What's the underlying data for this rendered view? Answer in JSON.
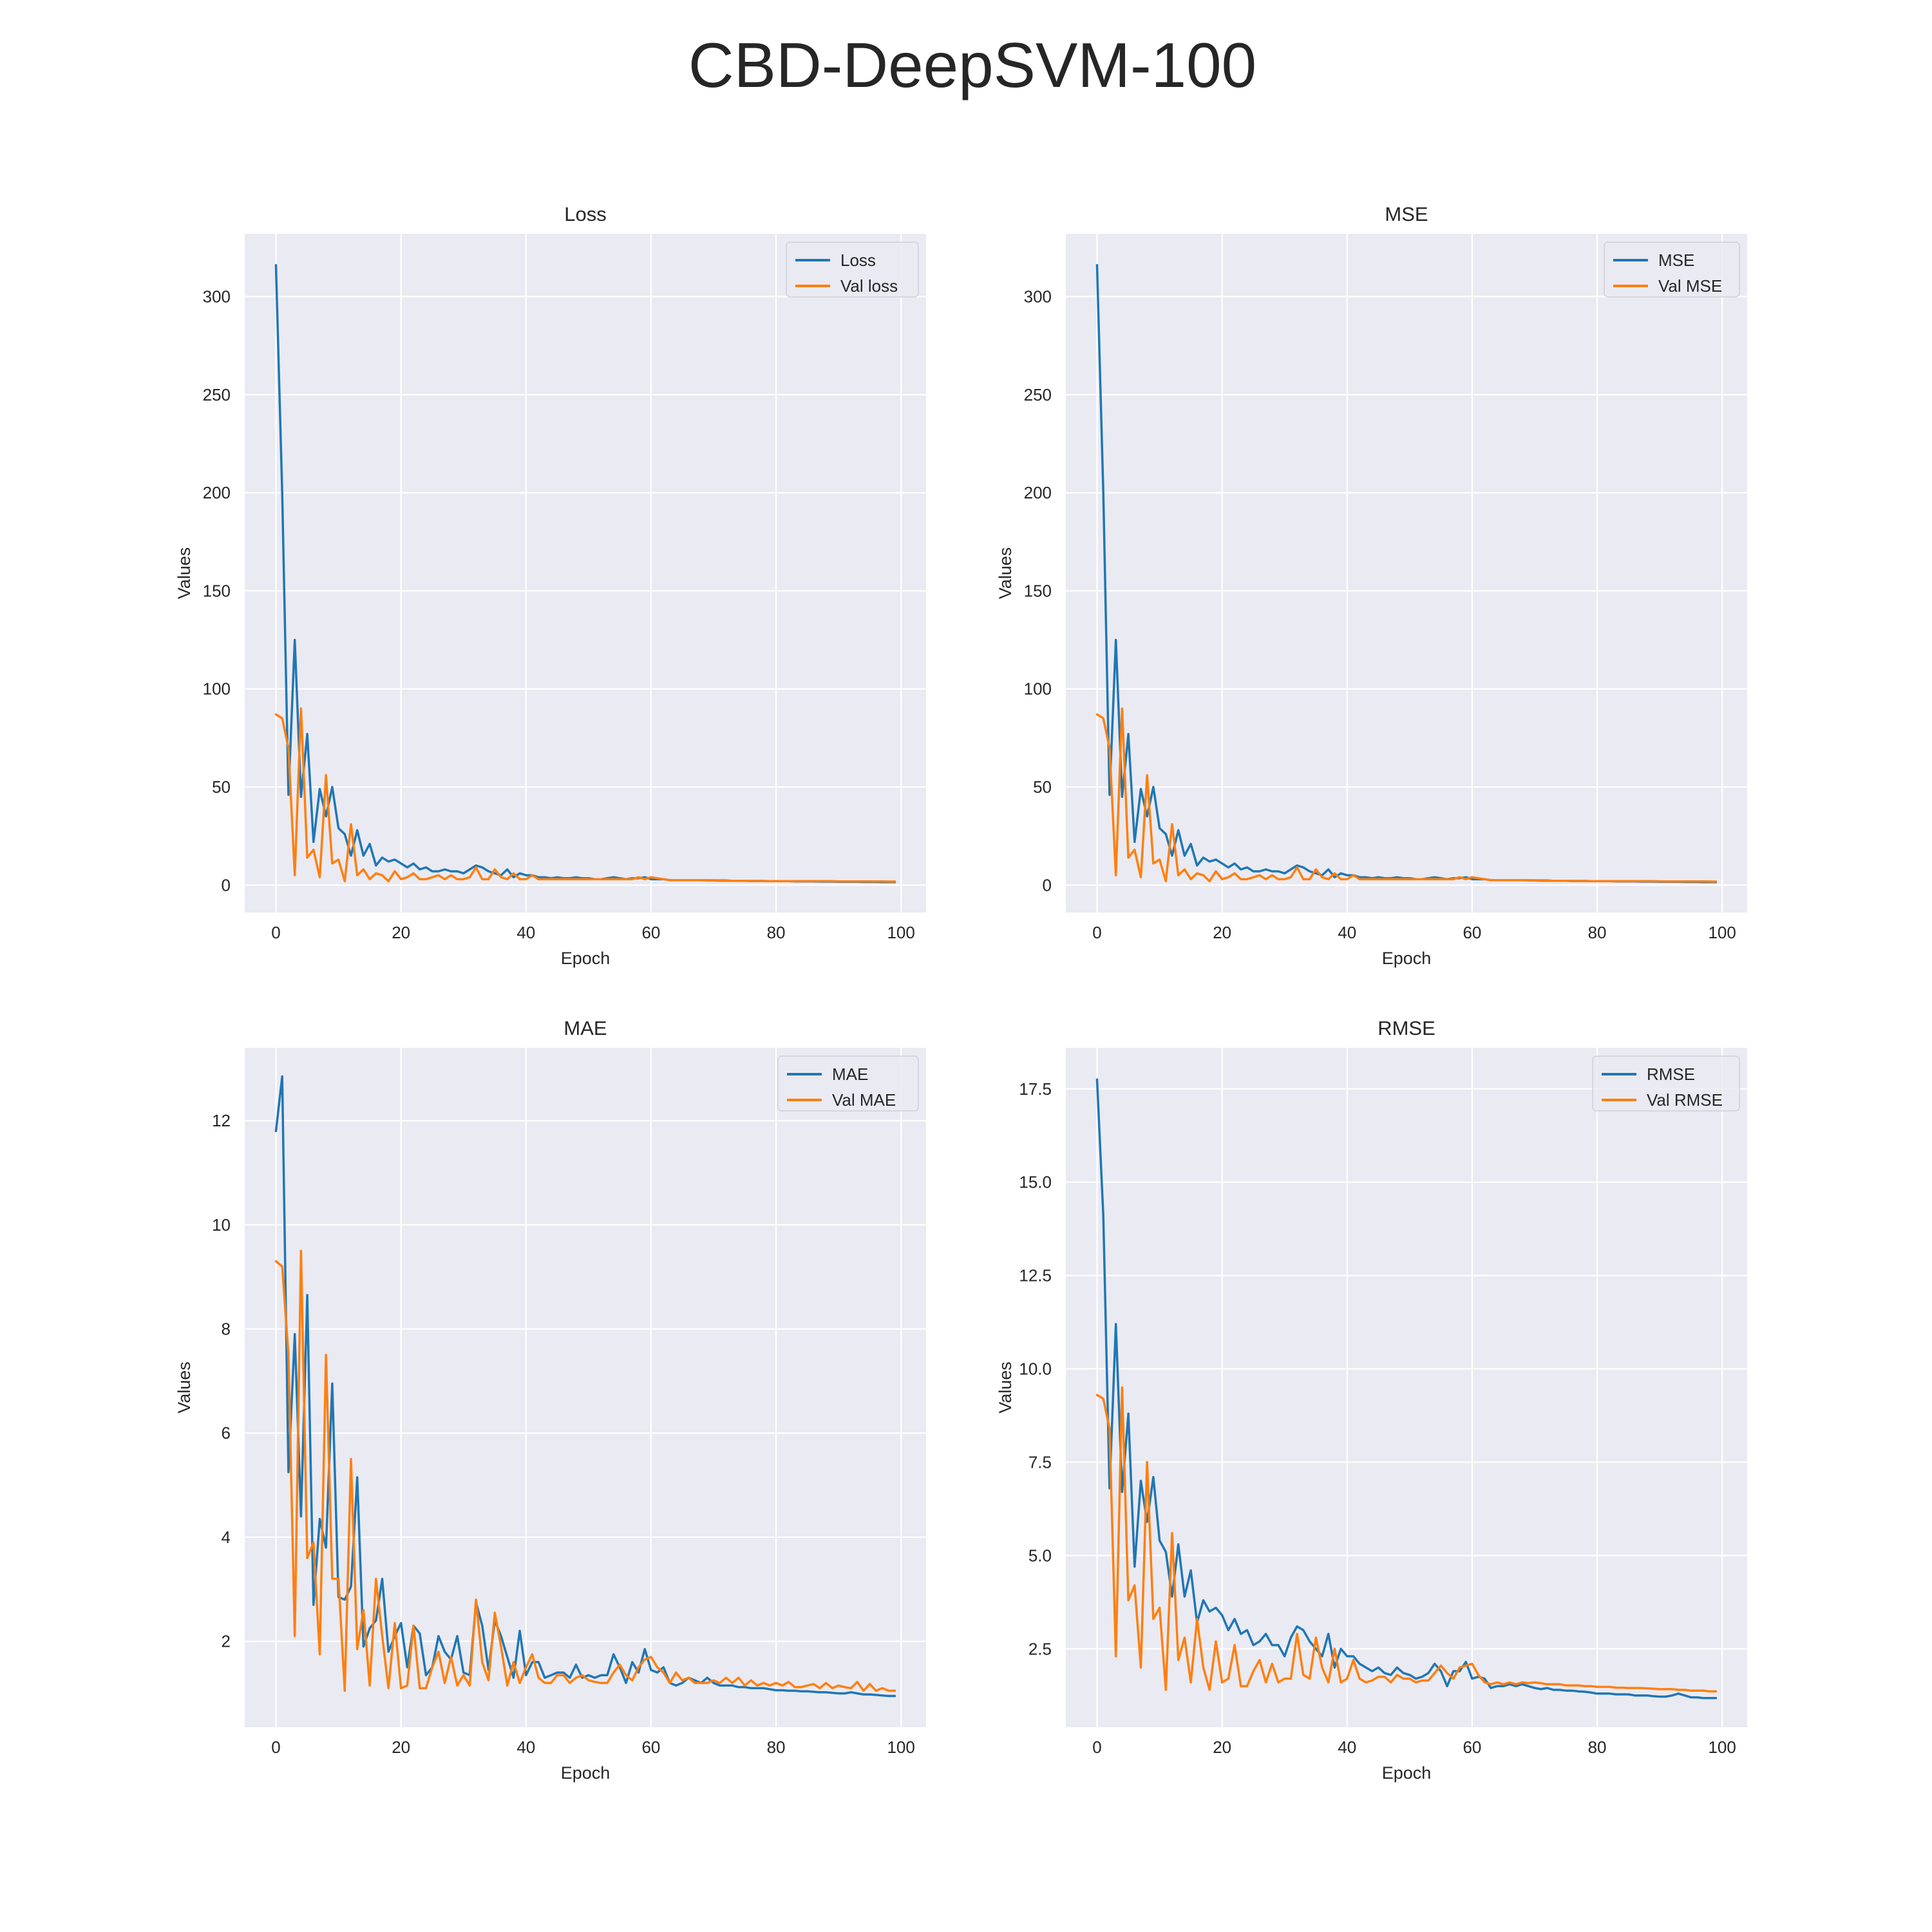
{
  "figure_title": "CBD-DeepSVM-100",
  "colors": {
    "train": "#1f77b4",
    "val": "#ff7f0e",
    "background": "#eaeaf2",
    "grid": "#ffffff"
  },
  "chart_data": [
    {
      "type": "line",
      "title": "Loss",
      "xlabel": "Epoch",
      "ylabel": "Values",
      "xlim": [
        -5,
        104
      ],
      "ylim": [
        -14,
        332
      ],
      "xticks": [
        0,
        20,
        40,
        60,
        80,
        100
      ],
      "yticks": [
        0,
        50,
        100,
        150,
        200,
        250,
        300
      ],
      "grid": true,
      "legend_position": "top-right",
      "series": [
        {
          "name": "Loss",
          "color": "#1f77b4",
          "values": [
            316,
            200,
            46,
            125,
            45,
            77,
            22,
            49,
            35,
            50,
            29,
            26,
            15,
            28,
            15,
            21,
            10,
            14,
            12,
            13,
            11,
            9,
            11,
            8,
            9,
            7,
            7,
            8,
            7,
            7,
            6,
            8,
            10,
            9,
            7,
            6,
            5,
            8,
            4,
            6,
            5,
            5,
            4,
            4,
            3.5,
            4,
            3.5,
            3.5,
            4,
            3.5,
            3.5,
            3,
            3,
            3.5,
            4,
            3.5,
            3,
            3.5,
            3.5,
            4,
            3,
            3,
            3,
            2.5,
            2.5,
            2.5,
            2.5,
            2.5,
            2.5,
            2.4,
            2.4,
            2.3,
            2.3,
            2.2,
            2.2,
            2.2,
            2.1,
            2.1,
            2.1,
            2,
            2,
            2,
            2,
            1.9,
            1.9,
            1.9,
            1.9,
            1.8,
            1.8,
            1.8,
            1.7,
            1.7,
            1.7,
            1.7,
            1.6,
            1.6,
            1.6,
            1.5,
            1.5,
            1.5
          ]
        },
        {
          "name": "Val loss",
          "color": "#ff7f0e",
          "values": [
            87,
            85,
            70,
            5,
            90,
            14,
            18,
            4,
            56,
            11,
            13,
            2,
            31,
            5,
            8,
            3,
            6,
            5,
            2,
            7,
            3,
            4,
            6,
            3,
            3,
            4,
            5,
            3,
            5,
            3,
            3,
            4,
            9,
            3,
            3,
            8,
            4,
            3,
            6,
            3,
            3,
            5,
            3,
            3,
            3,
            3,
            3,
            3,
            3,
            3,
            3,
            3,
            3,
            3,
            3,
            3,
            3,
            3,
            4,
            3,
            4,
            3.5,
            3,
            2.5,
            2.5,
            2.5,
            2.5,
            2.5,
            2.5,
            2.5,
            2.3,
            2.2,
            2.2,
            2.2,
            2.2,
            2.2,
            2.1,
            2.1,
            2.1,
            2,
            2,
            2,
            2,
            2,
            2,
            2,
            2,
            2,
            2,
            2,
            1.9,
            1.9,
            1.9,
            1.9,
            1.9,
            1.9,
            1.9,
            1.9,
            1.8,
            1.8
          ]
        }
      ]
    },
    {
      "type": "line",
      "title": "MSE",
      "xlabel": "Epoch",
      "ylabel": "Values",
      "xlim": [
        -5,
        104
      ],
      "ylim": [
        -14,
        332
      ],
      "xticks": [
        0,
        20,
        40,
        60,
        80,
        100
      ],
      "yticks": [
        0,
        50,
        100,
        150,
        200,
        250,
        300
      ],
      "grid": true,
      "legend_position": "top-right",
      "series": [
        {
          "name": "MSE",
          "color": "#1f77b4",
          "values": [
            316,
            200,
            46,
            125,
            45,
            77,
            22,
            49,
            35,
            50,
            29,
            26,
            15,
            28,
            15,
            21,
            10,
            14,
            12,
            13,
            11,
            9,
            11,
            8,
            9,
            7,
            7,
            8,
            7,
            7,
            6,
            8,
            10,
            9,
            7,
            6,
            5,
            8,
            4,
            6,
            5,
            5,
            4,
            4,
            3.5,
            4,
            3.5,
            3.5,
            4,
            3.5,
            3.5,
            3,
            3,
            3.5,
            4,
            3.5,
            3,
            3.5,
            3.5,
            4,
            3,
            3,
            3,
            2.5,
            2.5,
            2.5,
            2.5,
            2.5,
            2.5,
            2.4,
            2.4,
            2.3,
            2.3,
            2.2,
            2.2,
            2.2,
            2.1,
            2.1,
            2.1,
            2,
            2,
            2,
            2,
            1.9,
            1.9,
            1.9,
            1.9,
            1.8,
            1.8,
            1.8,
            1.7,
            1.7,
            1.7,
            1.7,
            1.6,
            1.6,
            1.6,
            1.5,
            1.5,
            1.5
          ]
        },
        {
          "name": "Val MSE",
          "color": "#ff7f0e",
          "values": [
            87,
            85,
            70,
            5,
            90,
            14,
            18,
            4,
            56,
            11,
            13,
            2,
            31,
            5,
            8,
            3,
            6,
            5,
            2,
            7,
            3,
            4,
            6,
            3,
            3,
            4,
            5,
            3,
            5,
            3,
            3,
            4,
            9,
            3,
            3,
            8,
            4,
            3,
            6,
            3,
            3,
            5,
            3,
            3,
            3,
            3,
            3,
            3,
            3,
            3,
            3,
            3,
            3,
            3,
            3,
            3,
            3,
            3,
            4,
            3,
            4,
            3.5,
            3,
            2.5,
            2.5,
            2.5,
            2.5,
            2.5,
            2.5,
            2.5,
            2.3,
            2.2,
            2.2,
            2.2,
            2.2,
            2.2,
            2.1,
            2.1,
            2.1,
            2,
            2,
            2,
            2,
            2,
            2,
            2,
            2,
            2,
            2,
            2,
            1.9,
            1.9,
            1.9,
            1.9,
            1.9,
            1.9,
            1.9,
            1.9,
            1.8,
            1.8
          ]
        }
      ]
    },
    {
      "type": "line",
      "title": "MAE",
      "xlabel": "Epoch",
      "ylabel": "Values",
      "xlim": [
        -5,
        104
      ],
      "ylim": [
        0.35,
        13.4
      ],
      "xticks": [
        0,
        20,
        40,
        60,
        80,
        100
      ],
      "yticks": [
        2,
        4,
        6,
        8,
        10,
        12
      ],
      "grid": true,
      "legend_position": "top-right",
      "series": [
        {
          "name": "MAE",
          "color": "#1f77b4",
          "values": [
            11.8,
            12.85,
            5.25,
            7.9,
            4.4,
            8.65,
            2.7,
            4.35,
            3.8,
            6.95,
            2.85,
            2.8,
            3.05,
            5.15,
            1.9,
            2.25,
            2.4,
            3.2,
            1.8,
            2.1,
            2.35,
            1.5,
            2.3,
            2.15,
            1.35,
            1.5,
            2.1,
            1.8,
            1.65,
            2.1,
            1.4,
            1.35,
            2.75,
            2.3,
            1.45,
            2.4,
            2.1,
            1.7,
            1.3,
            2.2,
            1.35,
            1.6,
            1.6,
            1.3,
            1.35,
            1.4,
            1.4,
            1.3,
            1.55,
            1.3,
            1.35,
            1.3,
            1.35,
            1.35,
            1.75,
            1.5,
            1.2,
            1.6,
            1.4,
            1.85,
            1.45,
            1.4,
            1.5,
            1.2,
            1.15,
            1.2,
            1.3,
            1.25,
            1.2,
            1.3,
            1.2,
            1.15,
            1.15,
            1.15,
            1.12,
            1.12,
            1.1,
            1.1,
            1.1,
            1.08,
            1.06,
            1.06,
            1.05,
            1.05,
            1.04,
            1.04,
            1.03,
            1.02,
            1.02,
            1.01,
            1.0,
            1.0,
            1.02,
            1.0,
            0.98,
            0.98,
            0.97,
            0.96,
            0.95,
            0.95
          ]
        },
        {
          "name": "Val MAE",
          "color": "#ff7f0e",
          "values": [
            9.3,
            9.2,
            7.5,
            2.1,
            9.5,
            3.6,
            3.9,
            1.75,
            7.5,
            3.2,
            3.2,
            1.05,
            5.5,
            1.85,
            2.6,
            1.15,
            3.2,
            2.1,
            1.1,
            2.35,
            1.1,
            1.15,
            2.3,
            1.1,
            1.1,
            1.5,
            1.8,
            1.2,
            1.7,
            1.15,
            1.35,
            1.15,
            2.8,
            1.6,
            1.25,
            2.55,
            1.9,
            1.15,
            1.6,
            1.2,
            1.5,
            1.75,
            1.3,
            1.2,
            1.2,
            1.35,
            1.35,
            1.2,
            1.3,
            1.35,
            1.25,
            1.22,
            1.2,
            1.2,
            1.4,
            1.55,
            1.35,
            1.25,
            1.5,
            1.65,
            1.7,
            1.5,
            1.4,
            1.2,
            1.4,
            1.25,
            1.3,
            1.2,
            1.2,
            1.2,
            1.25,
            1.2,
            1.3,
            1.2,
            1.3,
            1.15,
            1.25,
            1.15,
            1.2,
            1.15,
            1.2,
            1.15,
            1.22,
            1.12,
            1.12,
            1.15,
            1.18,
            1.1,
            1.2,
            1.1,
            1.15,
            1.12,
            1.1,
            1.22,
            1.05,
            1.18,
            1.05,
            1.1,
            1.05,
            1.05
          ]
        }
      ]
    },
    {
      "type": "line",
      "title": "RMSE",
      "xlabel": "Epoch",
      "ylabel": "Values",
      "xlim": [
        -5,
        104
      ],
      "ylim": [
        0.4,
        18.6
      ],
      "xticks": [
        0,
        20,
        40,
        60,
        80,
        100
      ],
      "yticks": [
        2.5,
        5.0,
        7.5,
        10.0,
        12.5,
        15.0,
        17.5
      ],
      "ytick_labels": [
        "2.5",
        "5.0",
        "7.5",
        "10.0",
        "12.5",
        "15.0",
        "17.5"
      ],
      "grid": true,
      "legend_position": "top-right",
      "series": [
        {
          "name": "RMSE",
          "color": "#1f77b4",
          "values": [
            17.75,
            14.1,
            6.8,
            11.2,
            6.7,
            8.8,
            4.7,
            7.0,
            5.9,
            7.1,
            5.4,
            5.1,
            3.9,
            5.3,
            3.9,
            4.6,
            3.2,
            3.8,
            3.5,
            3.6,
            3.4,
            3.0,
            3.3,
            2.9,
            3.0,
            2.6,
            2.7,
            2.9,
            2.6,
            2.6,
            2.3,
            2.8,
            3.1,
            3.0,
            2.7,
            2.5,
            2.3,
            2.9,
            2.0,
            2.5,
            2.3,
            2.3,
            2.1,
            2.0,
            1.9,
            2.0,
            1.85,
            1.8,
            2.0,
            1.85,
            1.8,
            1.7,
            1.75,
            1.85,
            2.1,
            1.9,
            1.5,
            1.9,
            1.9,
            2.15,
            1.7,
            1.75,
            1.7,
            1.45,
            1.5,
            1.5,
            1.55,
            1.5,
            1.55,
            1.5,
            1.45,
            1.42,
            1.45,
            1.4,
            1.4,
            1.38,
            1.38,
            1.36,
            1.35,
            1.33,
            1.3,
            1.3,
            1.3,
            1.28,
            1.28,
            1.28,
            1.25,
            1.25,
            1.25,
            1.23,
            1.22,
            1.22,
            1.25,
            1.3,
            1.25,
            1.2,
            1.2,
            1.18,
            1.18,
            1.18
          ]
        },
        {
          "name": "Val RMSE",
          "color": "#ff7f0e",
          "values": [
            9.3,
            9.2,
            8.4,
            2.3,
            9.5,
            3.8,
            4.2,
            2.0,
            7.5,
            3.3,
            3.6,
            1.4,
            5.6,
            2.2,
            2.8,
            1.6,
            3.3,
            2.0,
            1.4,
            2.7,
            1.6,
            1.7,
            2.6,
            1.5,
            1.5,
            1.9,
            2.2,
            1.6,
            2.1,
            1.6,
            1.7,
            1.7,
            2.9,
            1.8,
            1.7,
            2.8,
            2.0,
            1.6,
            2.5,
            1.6,
            1.7,
            2.2,
            1.7,
            1.6,
            1.65,
            1.75,
            1.75,
            1.6,
            1.8,
            1.7,
            1.7,
            1.6,
            1.65,
            1.65,
            1.85,
            2.05,
            1.85,
            1.7,
            2.0,
            2.05,
            2.1,
            1.8,
            1.6,
            1.55,
            1.6,
            1.55,
            1.6,
            1.55,
            1.6,
            1.58,
            1.6,
            1.58,
            1.55,
            1.55,
            1.55,
            1.52,
            1.52,
            1.52,
            1.5,
            1.5,
            1.48,
            1.48,
            1.48,
            1.46,
            1.46,
            1.45,
            1.45,
            1.45,
            1.44,
            1.43,
            1.42,
            1.42,
            1.42,
            1.4,
            1.4,
            1.38,
            1.38,
            1.38,
            1.36,
            1.36
          ]
        }
      ]
    }
  ]
}
